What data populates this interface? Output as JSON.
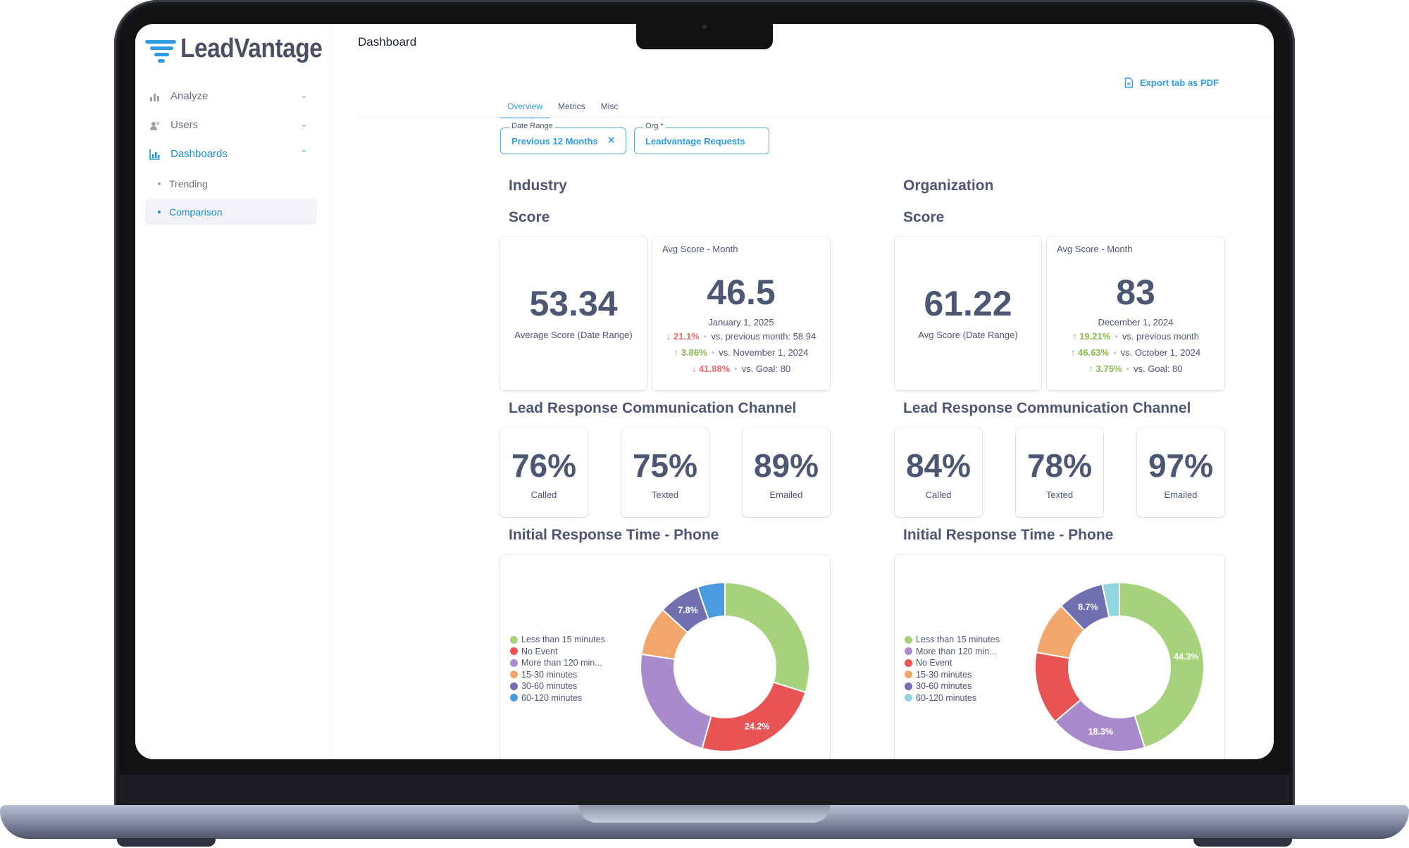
{
  "app": {
    "logo_text": "LeadVantage",
    "page_title": "Dashboard"
  },
  "sidebar": {
    "items": [
      {
        "label": "Analyze",
        "icon": "bar-chart-icon",
        "expanded": false
      },
      {
        "label": "Users",
        "icon": "users-icon",
        "expanded": false
      },
      {
        "label": "Dashboards",
        "icon": "dashboard-chart-icon",
        "expanded": true
      }
    ],
    "subitems": [
      {
        "label": "Trending",
        "selected": false
      },
      {
        "label": "Comparison",
        "selected": true
      }
    ]
  },
  "toolbar": {
    "export_label": "Export tab as PDF"
  },
  "tabs": [
    {
      "label": "Overview",
      "active": true
    },
    {
      "label": "Metrics"
    },
    {
      "label": "Misc"
    }
  ],
  "filters": {
    "date_range": {
      "label": "Date Range",
      "value": "Previous 12 Months"
    },
    "org": {
      "label": "Org *",
      "value": "Leadvantage Requests"
    }
  },
  "sections": {
    "score_title": "Score",
    "channel_title": "Lead Response Communication Channel",
    "response_title": "Initial Response Time - Phone"
  },
  "colors": {
    "accent": "#2e9be6",
    "up": "#84bb4c",
    "down": "#ed6e6e",
    "series": [
      "#a6d27b",
      "#e85454",
      "#a98bcb",
      "#f1a76c",
      "#7070b0",
      "#4a9be0",
      "#8fd6de"
    ]
  },
  "industry": {
    "title": "Industry",
    "avg_score": {
      "value": "53.34",
      "label": "Average Score (Date Range)"
    },
    "month": {
      "title": "Avg Score - Month",
      "value": "46.5",
      "date": "January 1, 2025",
      "trends": [
        {
          "dir": "down",
          "pct": "21.1%",
          "compare": "vs. previous month: 58.94"
        },
        {
          "dir": "up",
          "pct": "3.86%",
          "compare": "vs. November 1, 2024"
        },
        {
          "dir": "down",
          "pct": "41.88%",
          "compare": "vs. Goal: 80"
        }
      ]
    },
    "channels": [
      {
        "value": "76%",
        "label": "Called"
      },
      {
        "value": "75%",
        "label": "Texted"
      },
      {
        "value": "89%",
        "label": "Emailed"
      }
    ],
    "legend": [
      "Less than 15 minutes",
      "No Event",
      "More than 120 min...",
      "15-30 minutes",
      "30-60 minutes",
      "60-120 minutes"
    ]
  },
  "organization": {
    "title": "Organization",
    "avg_score": {
      "value": "61.22",
      "label": "Avg Score (Date Range)"
    },
    "month": {
      "title": "Avg Score - Month",
      "value": "83",
      "date": "December 1, 2024",
      "trends": [
        {
          "dir": "up",
          "pct": "19.21%",
          "compare": "vs. previous month"
        },
        {
          "dir": "up",
          "pct": "46.63%",
          "compare": "vs. October 1, 2024"
        },
        {
          "dir": "up",
          "pct": "3.75%",
          "compare": "vs. Goal: 80"
        }
      ]
    },
    "channels": [
      {
        "value": "84%",
        "label": "Called"
      },
      {
        "value": "78%",
        "label": "Texted"
      },
      {
        "value": "97%",
        "label": "Emailed"
      }
    ],
    "legend": [
      "Less than 15 minutes",
      "More than 120 min...",
      "No Event",
      "15-30 minutes",
      "30-60 minutes",
      "60-120 minutes"
    ]
  },
  "chart_data": [
    {
      "type": "pie",
      "categories": [
        "Less than 15 minutes",
        "No Event",
        "More than 120 min...",
        "15-30 minutes",
        "30-60 minutes",
        "60-120 minutes"
      ],
      "values": [
        29.5,
        24.2,
        22.8,
        9.3,
        7.8,
        5.2
      ],
      "data_labels": [
        "",
        "24.2%",
        "",
        "",
        "7.8%",
        ""
      ],
      "colors": [
        "#a6d27b",
        "#e85454",
        "#a98bcb",
        "#f1a76c",
        "#7070b0",
        "#4a9be0"
      ]
    },
    {
      "type": "pie",
      "categories": [
        "Less than 15 minutes",
        "More than 120 min...",
        "No Event",
        "15-30 minutes",
        "30-60 minutes",
        "60-120 minutes"
      ],
      "values": [
        44.3,
        18.3,
        13.7,
        9.9,
        8.7,
        3.2
      ],
      "data_labels": [
        "44.3%",
        "18.3%",
        "",
        "",
        "8.7%",
        ""
      ],
      "colors": [
        "#a6d27b",
        "#a98bcb",
        "#e85454",
        "#f1a76c",
        "#7070b0",
        "#8fd6de"
      ]
    }
  ]
}
